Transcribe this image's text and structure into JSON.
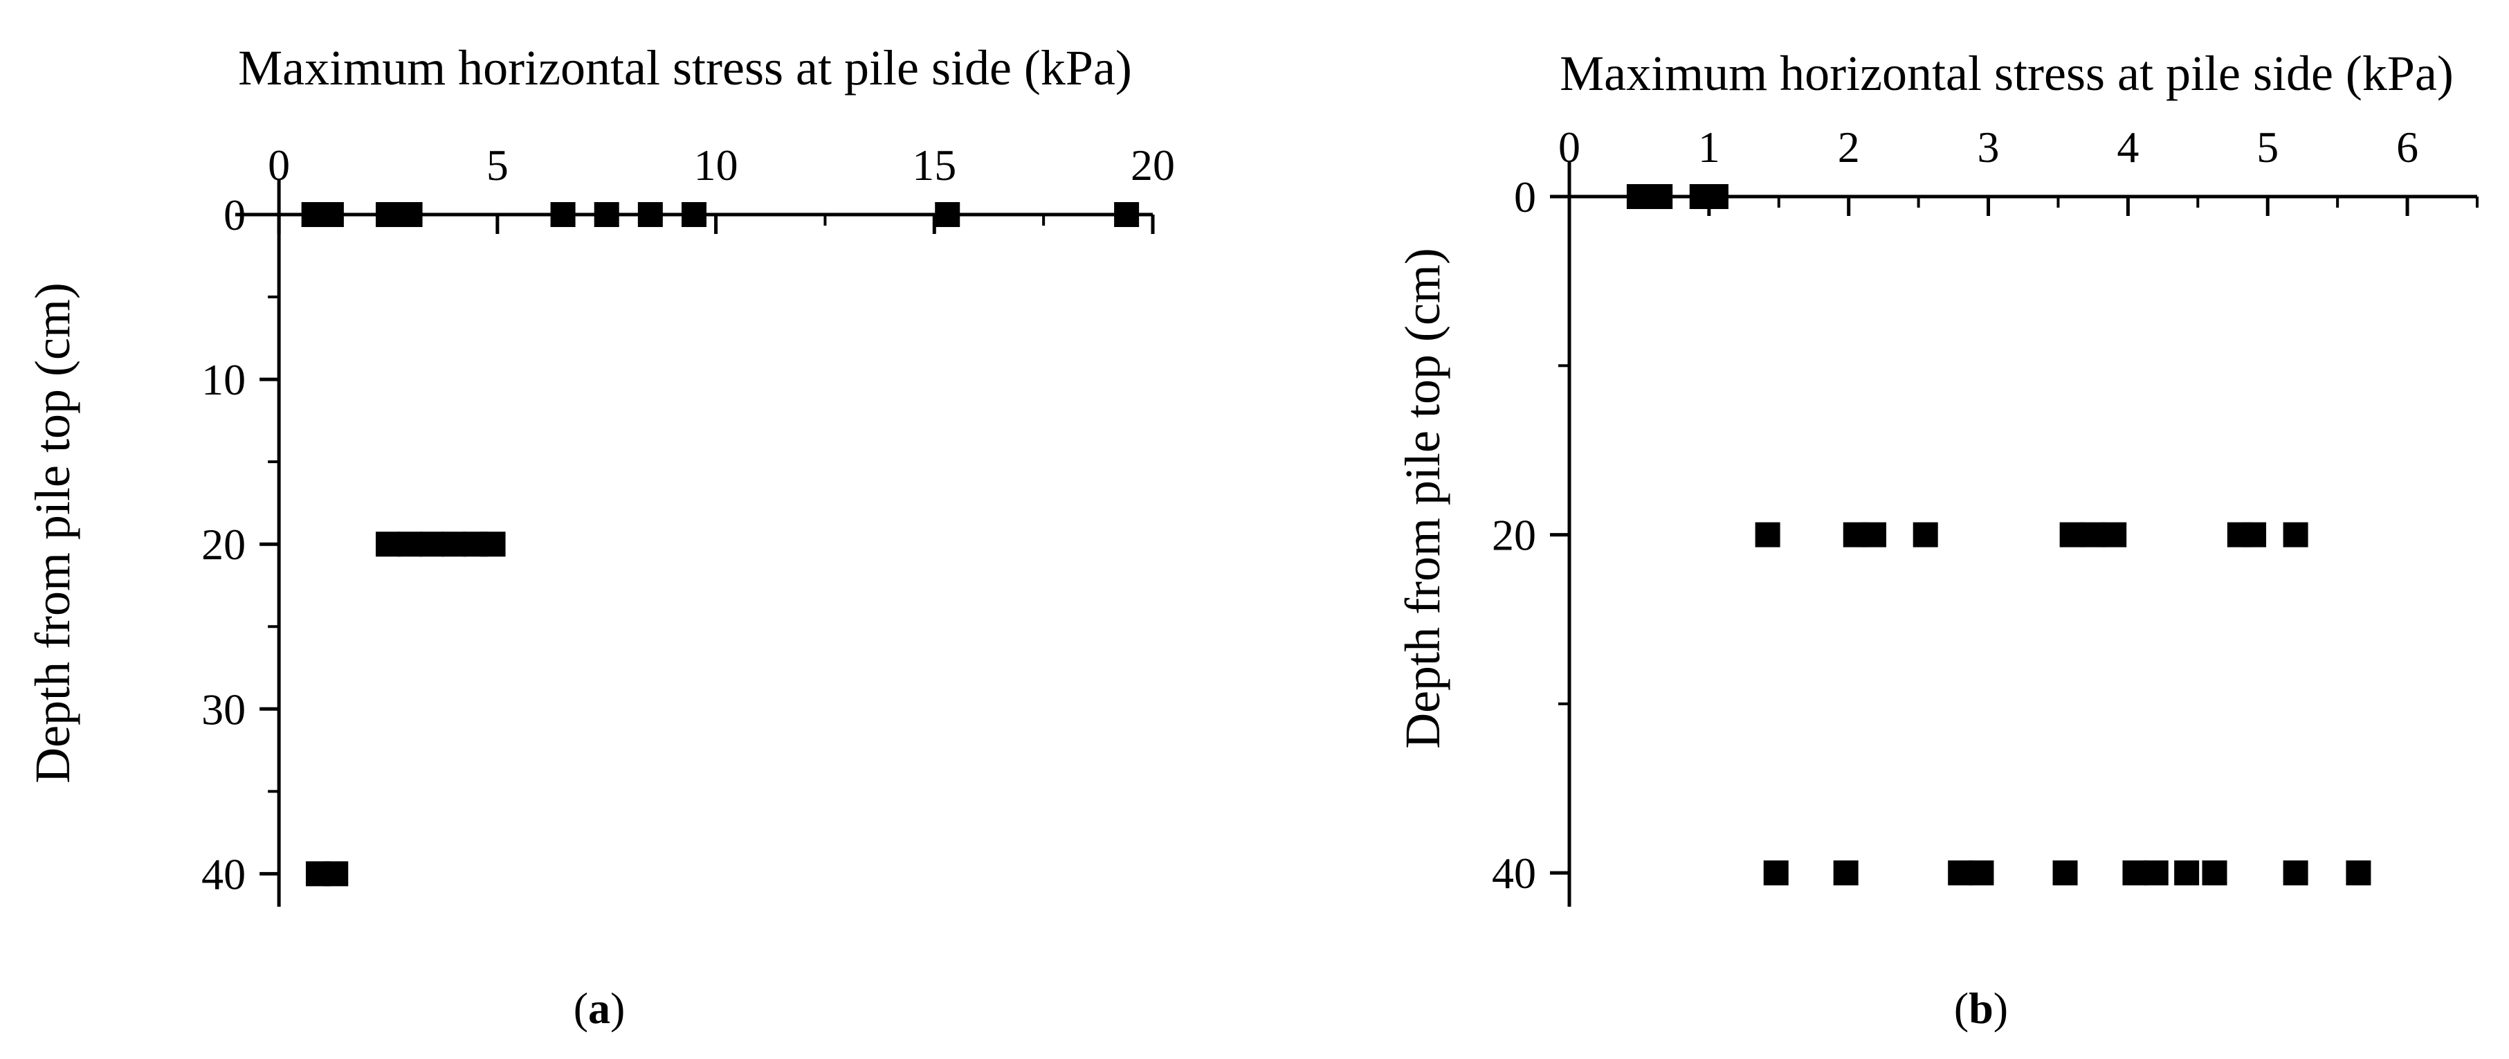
{
  "chart_data": [
    {
      "type": "scatter",
      "panel_label": {
        "open": "(",
        "letter": "a",
        "close": ")"
      },
      "xlabel": "Maximum horizontal stress at pile side (kPa)",
      "ylabel": "Depth from pile top (cm)",
      "xlim": [
        -1,
        20
      ],
      "ylim": [
        0,
        42
      ],
      "x_axis_position": "top",
      "y_reversed": true,
      "xticks": [
        0,
        5,
        10,
        15,
        20
      ],
      "yticks": [
        0,
        10,
        20,
        30,
        40
      ],
      "grid": false,
      "legend": "none",
      "marker": "filled-square",
      "color": "#000000",
      "points": [
        {
          "x": 0.8,
          "y": 0
        },
        {
          "x": 1.2,
          "y": 0
        },
        {
          "x": 2.5,
          "y": 0
        },
        {
          "x": 3.0,
          "y": 0
        },
        {
          "x": 6.5,
          "y": 0
        },
        {
          "x": 7.5,
          "y": 0
        },
        {
          "x": 8.5,
          "y": 0
        },
        {
          "x": 9.5,
          "y": 0
        },
        {
          "x": 15.3,
          "y": 0
        },
        {
          "x": 19.4,
          "y": 0
        },
        {
          "x": 2.5,
          "y": 20
        },
        {
          "x": 3.0,
          "y": 20
        },
        {
          "x": 3.5,
          "y": 20
        },
        {
          "x": 4.0,
          "y": 20
        },
        {
          "x": 4.5,
          "y": 20
        },
        {
          "x": 4.9,
          "y": 20
        },
        {
          "x": 0.9,
          "y": 40
        },
        {
          "x": 1.3,
          "y": 40
        }
      ]
    },
    {
      "type": "scatter",
      "panel_label": {
        "open": "(",
        "letter": "b",
        "close": ")"
      },
      "xlabel": "Maximum horizontal stress at pile side (kPa)",
      "ylabel": "Depth from pile top (cm)",
      "xlim": [
        0,
        6.5
      ],
      "ylim": [
        0,
        42
      ],
      "x_axis_position": "top",
      "y_reversed": true,
      "xticks": [
        0,
        1,
        2,
        3,
        4,
        5,
        6
      ],
      "yticks": [
        0,
        20,
        40
      ],
      "grid": false,
      "legend": "none",
      "marker": "filled-square",
      "color": "#000000",
      "points": [
        {
          "x": 0.5,
          "y": 0
        },
        {
          "x": 0.65,
          "y": 0
        },
        {
          "x": 0.95,
          "y": 0
        },
        {
          "x": 1.05,
          "y": 0
        },
        {
          "x": 1.42,
          "y": 20
        },
        {
          "x": 2.05,
          "y": 20
        },
        {
          "x": 2.18,
          "y": 20
        },
        {
          "x": 2.55,
          "y": 20
        },
        {
          "x": 3.6,
          "y": 20
        },
        {
          "x": 3.75,
          "y": 20
        },
        {
          "x": 3.9,
          "y": 20
        },
        {
          "x": 4.8,
          "y": 20
        },
        {
          "x": 4.9,
          "y": 20
        },
        {
          "x": 5.2,
          "y": 20
        },
        {
          "x": 1.48,
          "y": 40
        },
        {
          "x": 1.98,
          "y": 40
        },
        {
          "x": 2.8,
          "y": 40
        },
        {
          "x": 2.95,
          "y": 40
        },
        {
          "x": 3.55,
          "y": 40
        },
        {
          "x": 4.05,
          "y": 40
        },
        {
          "x": 4.2,
          "y": 40
        },
        {
          "x": 4.42,
          "y": 40
        },
        {
          "x": 4.62,
          "y": 40
        },
        {
          "x": 5.2,
          "y": 40
        },
        {
          "x": 5.65,
          "y": 40
        }
      ]
    }
  ]
}
